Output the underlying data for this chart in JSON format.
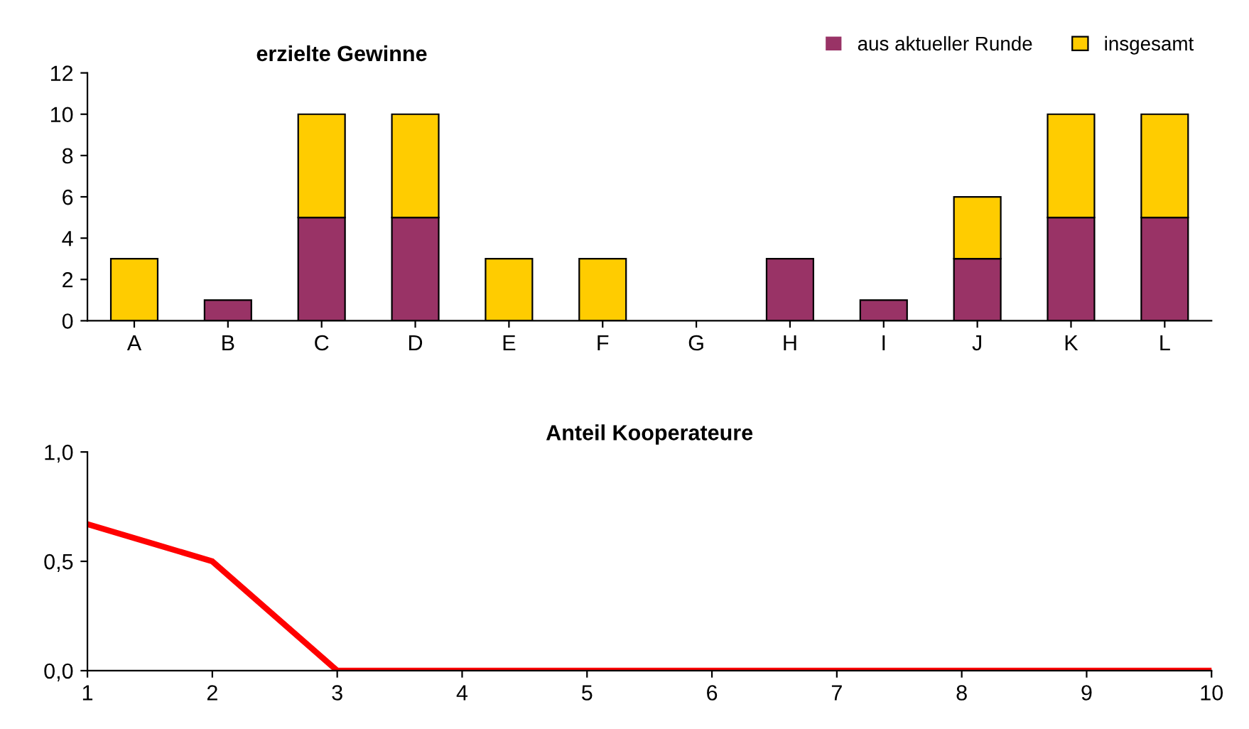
{
  "chart_data": [
    {
      "type": "bar",
      "title": "erzielte Gewinne",
      "stacked": true,
      "categories": [
        "A",
        "B",
        "C",
        "D",
        "E",
        "F",
        "G",
        "H",
        "I",
        "J",
        "K",
        "L"
      ],
      "series": [
        {
          "name": "aus aktueller Runde",
          "color": "#993366",
          "values": [
            0,
            1,
            5,
            5,
            0,
            0,
            0,
            3,
            1,
            3,
            5,
            5
          ]
        },
        {
          "name": "insgesamt",
          "color": "#ffcc00",
          "values": [
            3,
            0,
            5,
            5,
            3,
            3,
            0,
            0,
            0,
            3,
            5,
            5
          ]
        }
      ],
      "ylim": [
        0,
        12
      ],
      "yticks": [
        0,
        2,
        4,
        6,
        8,
        10,
        12
      ],
      "legend": "top right",
      "grid": false
    },
    {
      "type": "line",
      "title": "Anteil Kooperateure",
      "x": [
        1,
        2,
        3,
        4,
        5,
        6,
        7,
        8,
        9,
        10
      ],
      "series": [
        {
          "color": "#ff0000",
          "values": [
            0.67,
            0.5,
            0,
            0,
            0,
            0,
            0,
            0,
            0,
            0
          ]
        }
      ],
      "xlim": [
        1,
        10
      ],
      "xticks": [
        1,
        2,
        3,
        4,
        5,
        6,
        7,
        8,
        9,
        10
      ],
      "ylim": [
        0,
        1
      ],
      "yticks": [
        {
          "value": 0,
          "label": "0,0"
        },
        {
          "value": 0.5,
          "label": "0,5"
        },
        {
          "value": 1,
          "label": "1,0"
        }
      ],
      "marker": "none",
      "line_style": "solid",
      "grid": false,
      "legend": false
    }
  ]
}
